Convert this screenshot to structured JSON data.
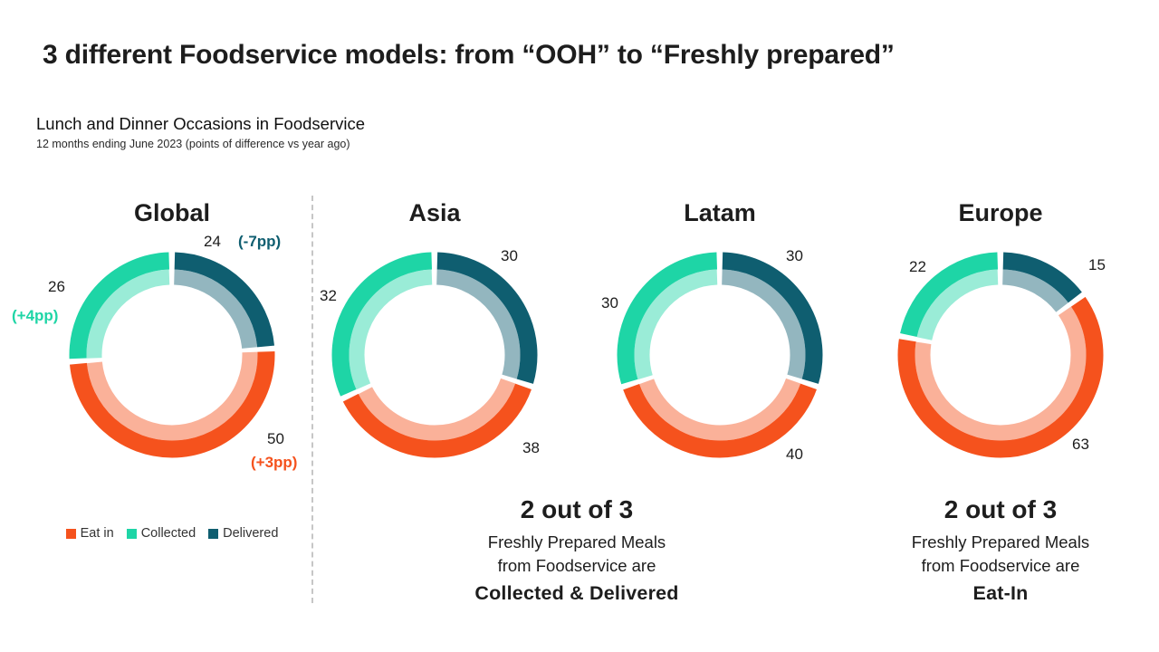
{
  "page": {
    "title": "3 different Foodservice models: from “OOH” to “Freshly prepared”",
    "subtitle": "Lunch and Dinner Occasions in Foodservice",
    "subnote": "12 months ending June 2023 (points of difference vs year ago)"
  },
  "colors": {
    "eat_in": "#F5521D",
    "collected": "#1ED5A6",
    "delivered": "#0F5E70"
  },
  "legend": {
    "items": [
      {
        "label": "Eat in",
        "color_key": "eat_in"
      },
      {
        "label": "Collected",
        "color_key": "collected"
      },
      {
        "label": "Delivered",
        "color_key": "delivered"
      }
    ]
  },
  "chart_data": [
    {
      "type": "pie",
      "variant": "double-ring-donut",
      "title": "Global",
      "segments": [
        {
          "name": "Delivered",
          "color_key": "delivered",
          "value": 24,
          "change": "(-7pp)"
        },
        {
          "name": "Eat in",
          "color_key": "eat_in",
          "value": 50,
          "change": "(+3pp)"
        },
        {
          "name": "Collected",
          "color_key": "collected",
          "value": 26,
          "change": "(+4pp)"
        }
      ]
    },
    {
      "type": "pie",
      "variant": "double-ring-donut",
      "title": "Asia",
      "segments": [
        {
          "name": "Delivered",
          "color_key": "delivered",
          "value": 30
        },
        {
          "name": "Eat in",
          "color_key": "eat_in",
          "value": 38
        },
        {
          "name": "Collected",
          "color_key": "collected",
          "value": 32
        }
      ]
    },
    {
      "type": "pie",
      "variant": "double-ring-donut",
      "title": "Latam",
      "segments": [
        {
          "name": "Delivered",
          "color_key": "delivered",
          "value": 30
        },
        {
          "name": "Eat in",
          "color_key": "eat_in",
          "value": 40
        },
        {
          "name": "Collected",
          "color_key": "collected",
          "value": 30
        }
      ]
    },
    {
      "type": "pie",
      "variant": "double-ring-donut",
      "title": "Europe",
      "segments": [
        {
          "name": "Delivered",
          "color_key": "delivered",
          "value": 15
        },
        {
          "name": "Eat in",
          "color_key": "eat_in",
          "value": 63
        },
        {
          "name": "Collected",
          "color_key": "collected",
          "value": 22
        }
      ]
    }
  ],
  "callouts": [
    {
      "headline": "2 out of 3",
      "line1": "Freshly Prepared Meals",
      "line2": "from Foodservice are",
      "emphasis": "Collected & Delivered"
    },
    {
      "headline": "2 out of 3",
      "line1": "Freshly Prepared Meals",
      "line2": "from Foodservice are",
      "emphasis": "Eat-In"
    }
  ]
}
